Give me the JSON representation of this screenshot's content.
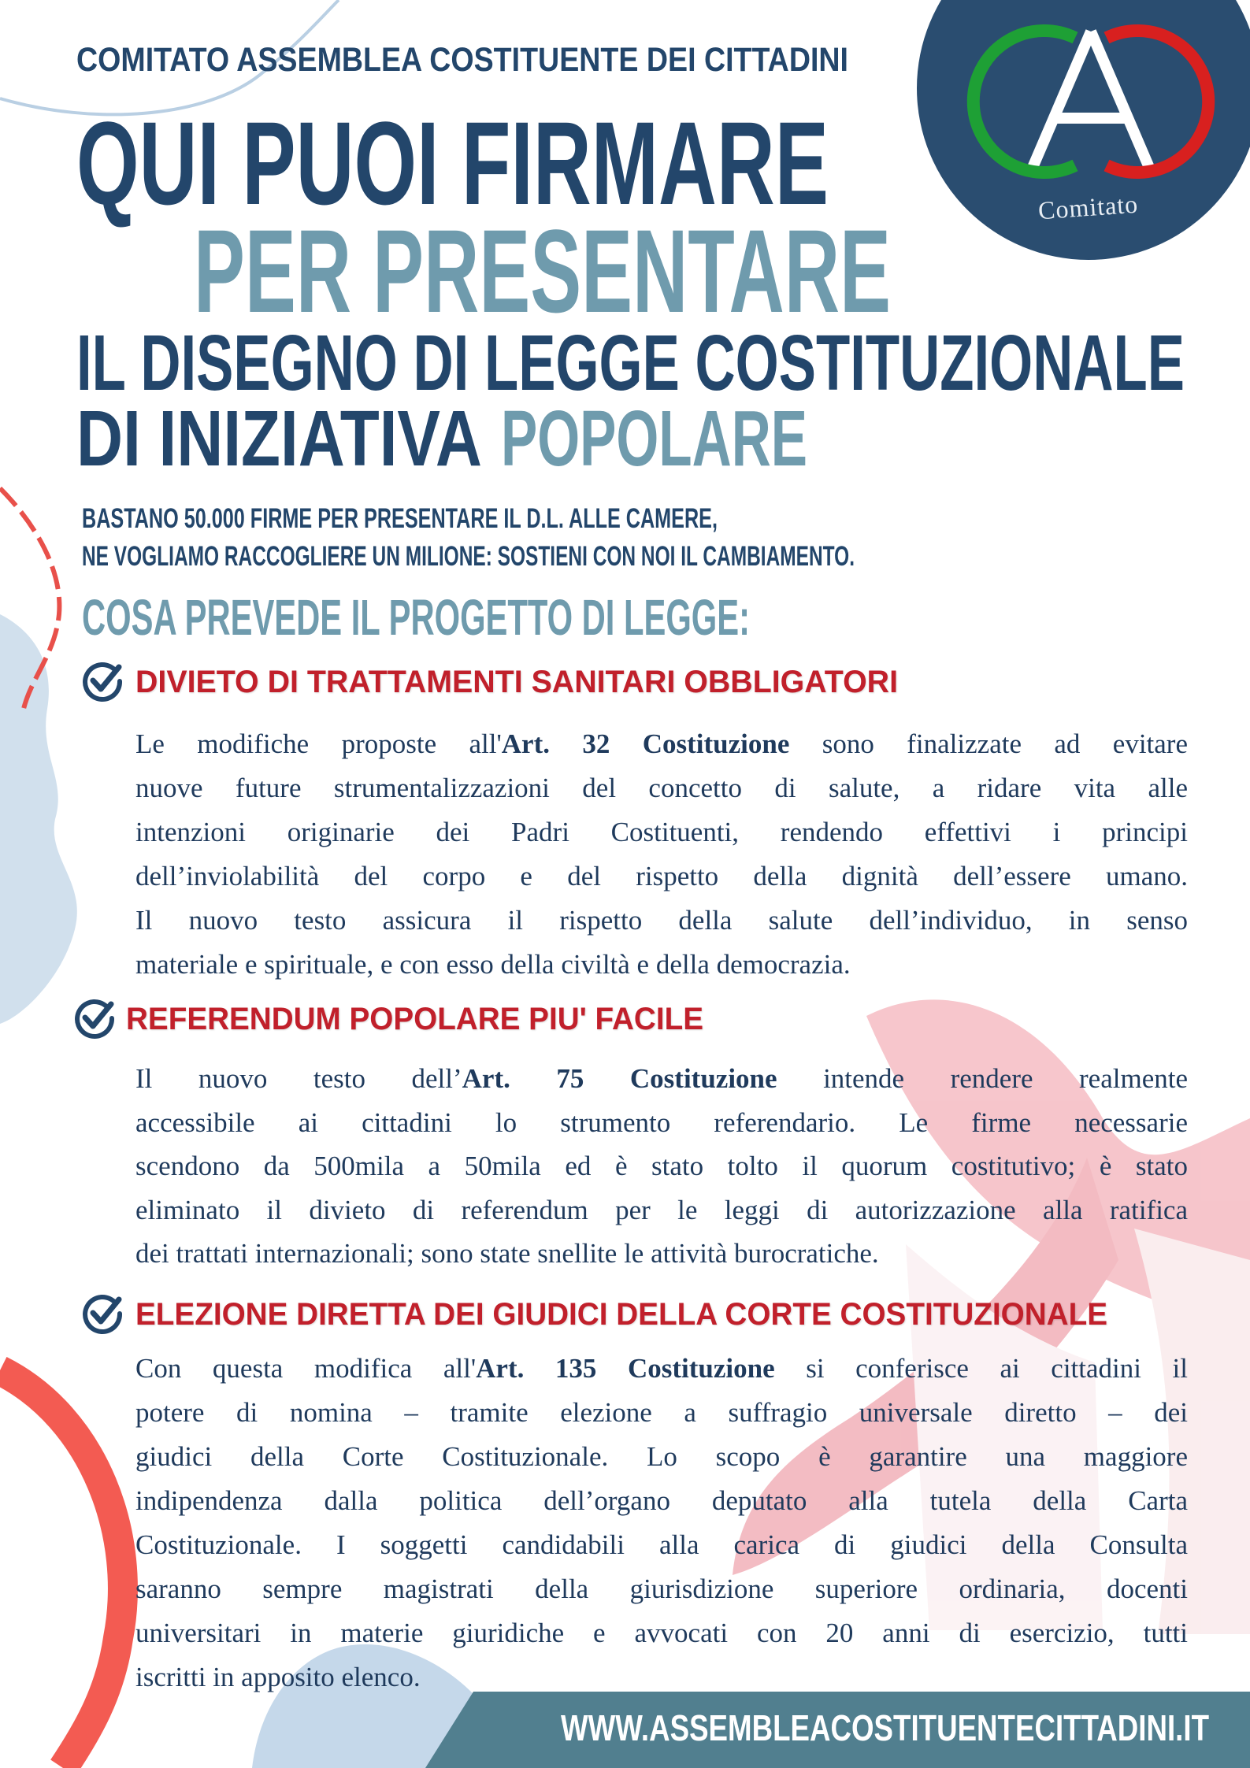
{
  "colors": {
    "navy": "#23466b",
    "steel": "#6f9bad",
    "red": "#c1202b",
    "badge": "#2a4d70",
    "footer": "#517f8f"
  },
  "logo": {
    "caption": "Comitato",
    "letters": "AC"
  },
  "header": {
    "organization": "COMITATO ASSEMBLEA COSTITUENTE DEI CITTADINI",
    "title_line1": "QUI PUOI FIRMARE",
    "title_line2": "PER PRESENTARE",
    "title_line3": "IL DISEGNO DI LEGGE COSTITUZIONALE",
    "title_line4a": "DI INIZIATIVA",
    "title_line4b": "POPOLARE"
  },
  "intro": {
    "line1": "BASTANO 50.000 FIRME PER PRESENTARE IL D.L. ALLE CAMERE,",
    "line2": "NE VOGLIAMO RACCOGLIERE UN MILIONE: SOSTIENI CON NOI IL CAMBIAMENTO."
  },
  "section_title": "COSA PREVEDE IL PROGETTO DI LEGGE:",
  "sections": [
    {
      "icon": "check-circle-icon",
      "heading": "DIVIETO DI TRATTAMENTI SANITARI OBBLIGATORI",
      "lines": [
        [
          [
            "Le modifiche proposte all'",
            0
          ],
          [
            "Art. 32 Costituzione",
            1
          ],
          [
            " sono finalizzate ad evitare",
            0
          ]
        ],
        [
          [
            "nuove future strumentalizzazioni del concetto di salute, a ridare vita alle",
            0
          ]
        ],
        [
          [
            "intenzioni originarie dei Padri Costituenti, rendendo effettivi i principi",
            0
          ]
        ],
        [
          [
            "dell’inviolabilità del corpo e del rispetto della dignità dell’essere umano.",
            0
          ]
        ],
        [
          [
            "Il nuovo testo assicura il rispetto della salute dell’individuo, in senso",
            0
          ]
        ],
        [
          [
            "materiale e spirituale, e con esso della civiltà e della democrazia.",
            0
          ]
        ]
      ]
    },
    {
      "icon": "check-circle-icon",
      "heading": "REFERENDUM POPOLARE  PIU' FACILE",
      "lines": [
        [
          [
            "Il nuovo testo dell’",
            0
          ],
          [
            "Art. 75 Costituzione",
            1
          ],
          [
            " intende rendere realmente",
            0
          ]
        ],
        [
          [
            "accessibile ai cittadini lo strumento referendario. Le firme necessarie",
            0
          ]
        ],
        [
          [
            "scendono da 500mila a 50mila ed è stato tolto il quorum costitutivo;  è stato",
            0
          ]
        ],
        [
          [
            "eliminato il divieto di referendum per le leggi di autorizzazione alla ratifica",
            0
          ]
        ],
        [
          [
            "dei trattati internazionali; sono state snellite le attività burocratiche.",
            0
          ]
        ]
      ]
    },
    {
      "icon": "check-circle-icon",
      "heading": "ELEZIONE DIRETTA DEI GIUDICI DELLA CORTE COSTITUZIONALE",
      "lines": [
        [
          [
            "Con questa modifica all'",
            0
          ],
          [
            "Art. 135 Costituzione",
            1
          ],
          [
            " si conferisce ai cittadini il",
            0
          ]
        ],
        [
          [
            "potere di nomina – tramite elezione a suffragio universale diretto – dei",
            0
          ]
        ],
        [
          [
            "giudici della Corte Costituzionale. Lo scopo è garantire una maggiore",
            0
          ]
        ],
        [
          [
            "indipendenza dalla politica dell’organo deputato alla tutela della Carta",
            0
          ]
        ],
        [
          [
            "Costituzionale. I soggetti candidabili alla carica di giudici della Consulta",
            0
          ]
        ],
        [
          [
            "saranno sempre magistrati della giurisdizione superiore ordinaria, docenti",
            0
          ]
        ],
        [
          [
            "universitari in materie giuridiche e avvocati con 20 anni di esercizio, tutti",
            0
          ]
        ],
        [
          [
            "iscritti in apposito elenco.",
            0
          ]
        ]
      ]
    }
  ],
  "footer": {
    "website": "WWW.ASSEMBLEACOSTITUENTECITTADINI.IT"
  }
}
